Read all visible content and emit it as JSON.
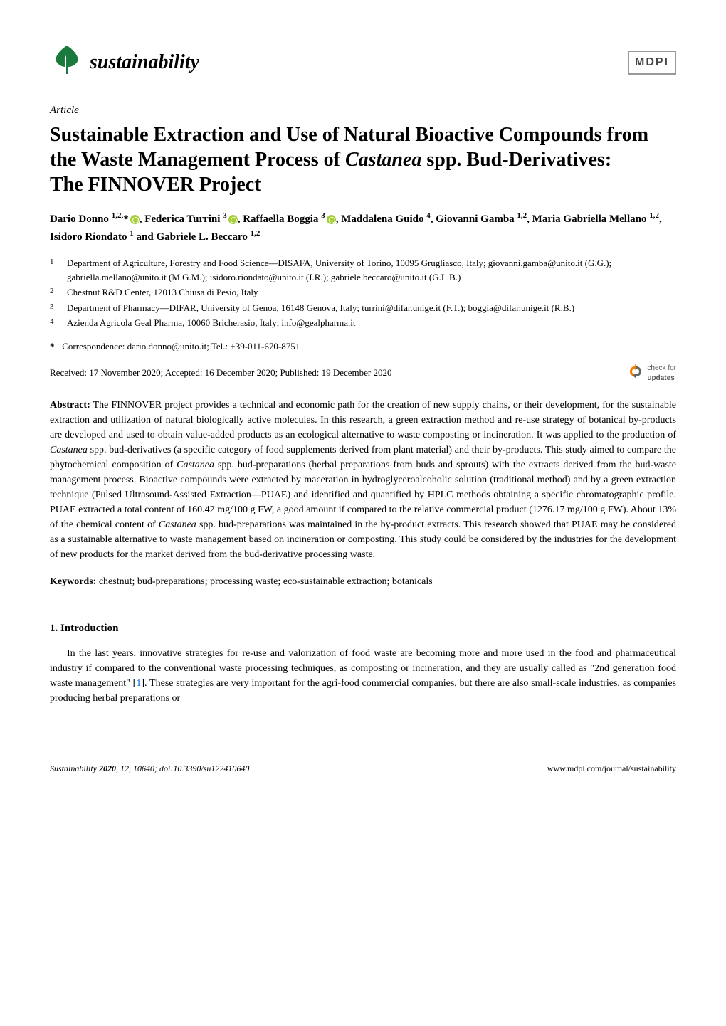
{
  "header": {
    "journal_name": "sustainability",
    "publisher": "MDPI",
    "leaf_color": "#1a7a3e",
    "mdpi_text_color": "#5a5a5a"
  },
  "article": {
    "type": "Article",
    "title": "Sustainable Extraction and Use of Natural Bioactive Compounds from the Waste Management Process of Castanea spp. Bud-Derivatives: The FINNOVER Project",
    "authors_html": "Dario Donno <sup>1,2,</sup>*<span class='orcid-icon' data-name='orcid-icon' data-interactable='false'></span>, Federica Turrini <sup>3</sup><span class='orcid-icon' data-name='orcid-icon' data-interactable='false'></span>, Raffaella Boggia <sup>3</sup><span class='orcid-icon' data-name='orcid-icon' data-interactable='false'></span>, Maddalena Guido <sup>4</sup>, Giovanni Gamba <sup>1,2</sup>, Maria Gabriella Mellano <sup>1,2</sup>, Isidoro Riondato <sup>1</sup> and Gabriele L. Beccaro <sup>1,2</sup>",
    "affiliations": [
      {
        "num": "1",
        "text": "Department of Agriculture, Forestry and Food Science—DISAFA, University of Torino, 10095 Grugliasco, Italy; giovanni.gamba@unito.it (G.G.); gabriella.mellano@unito.it (M.G.M.); isidoro.riondato@unito.it (I.R.); gabriele.beccaro@unito.it (G.L.B.)"
      },
      {
        "num": "2",
        "text": "Chestnut R&D Center, 12013 Chiusa di Pesio, Italy"
      },
      {
        "num": "3",
        "text": "Department of Pharmacy—DIFAR, University of Genoa, 16148 Genova, Italy; turrini@difar.unige.it (F.T.); boggia@difar.unige.it (R.B.)"
      },
      {
        "num": "4",
        "text": "Azienda Agricola Geal Pharma, 10060 Bricherasio, Italy; info@gealpharma.it"
      }
    ],
    "correspondence": "Correspondence: dario.donno@unito.it; Tel.: +39-011-670-8751",
    "received": "Received: 17 November 2020; Accepted: 16 December 2020; Published: 19 December 2020",
    "check_updates_label": "check for",
    "check_updates_label2": "updates"
  },
  "abstract": {
    "label": "Abstract:",
    "text": "The FINNOVER project provides a technical and economic path for the creation of new supply chains, or their development, for the sustainable extraction and utilization of natural biologically active molecules. In this research, a green extraction method and re-use strategy of botanical by-products are developed and used to obtain value-added products as an ecological alternative to waste composting or incineration. It was applied to the production of Castanea spp. bud-derivatives (a specific category of food supplements derived from plant material) and their by-products. This study aimed to compare the phytochemical composition of Castanea spp. bud-preparations (herbal preparations from buds and sprouts) with the extracts derived from the bud-waste management process. Bioactive compounds were extracted by maceration in hydroglyceroalcoholic solution (traditional method) and by a green extraction technique (Pulsed Ultrasound-Assisted Extraction—PUAE) and identified and quantified by HPLC methods obtaining a specific chromatographic profile. PUAE extracted a total content of 160.42 mg/100 g FW, a good amount if compared to the relative commercial product (1276.17 mg/100 g FW). About 13% of the chemical content of Castanea spp. bud-preparations was maintained in the by-product extracts. This research showed that PUAE may be considered as a sustainable alternative to waste management based on incineration or composting. This study could be considered by the industries for the development of new products for the market derived from the bud-derivative processing waste."
  },
  "keywords": {
    "label": "Keywords:",
    "text": "chestnut; bud-preparations; processing waste; eco-sustainable extraction; botanicals"
  },
  "introduction": {
    "heading": "1. Introduction",
    "text": "In the last years, innovative strategies for re-use and valorization of food waste are becoming more and more used in the food and pharmaceutical industry if compared to the conventional waste processing techniques, as composting or incineration, and they are usually called as \"2nd generation food waste management\" [1]. These strategies are very important for the agri-food commercial companies, but there are also small-scale industries, as companies producing herbal preparations or"
  },
  "footer": {
    "journal_ref": "Sustainability 2020, 12, 10640; doi:10.3390/su122410640",
    "url": "www.mdpi.com/journal/sustainability"
  },
  "colors": {
    "background": "#ffffff",
    "text": "#000000",
    "orcid": "#a6ce39",
    "leaf": "#1a7a3e",
    "check_badge": "#f57c00",
    "link": "#0066cc"
  },
  "typography": {
    "title_fontsize": 28,
    "body_fontsize": 14,
    "affiliation_fontsize": 13,
    "footer_fontsize": 12
  }
}
